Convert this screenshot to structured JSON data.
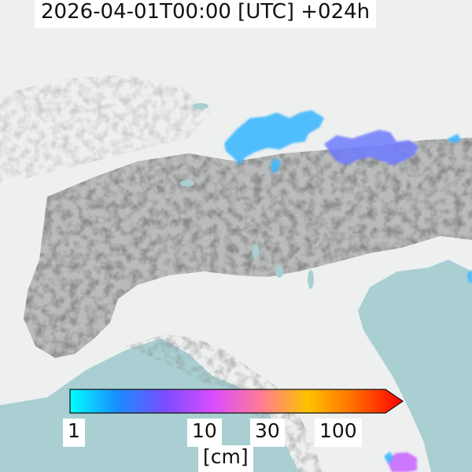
{
  "header": {
    "valid_time": "2026-04-01T00:00 [UTC] +024h"
  },
  "legend": {
    "ticks": [
      {
        "label": "1",
        "value": 1
      },
      {
        "label": "10",
        "value": 10
      },
      {
        "label": "30",
        "value": 30
      },
      {
        "label": "100",
        "value": 100
      }
    ],
    "unit": "[cm]",
    "colors": [
      "#00ffff",
      "#1a8cff",
      "#7a4dff",
      "#d84dff",
      "#ff7a9a",
      "#ffc200",
      "#ff6a00",
      "#ff0000"
    ],
    "extend": "max",
    "scale": "log"
  },
  "map": {
    "land_color": "#eef0f0",
    "sea_color": "#a9cfd2",
    "relief_color": "#5a5a5a",
    "snow_light_color": "#3fb8ff",
    "snow_mid_color": "#6f7bff",
    "snow_heavy_color": "#c96bff"
  }
}
